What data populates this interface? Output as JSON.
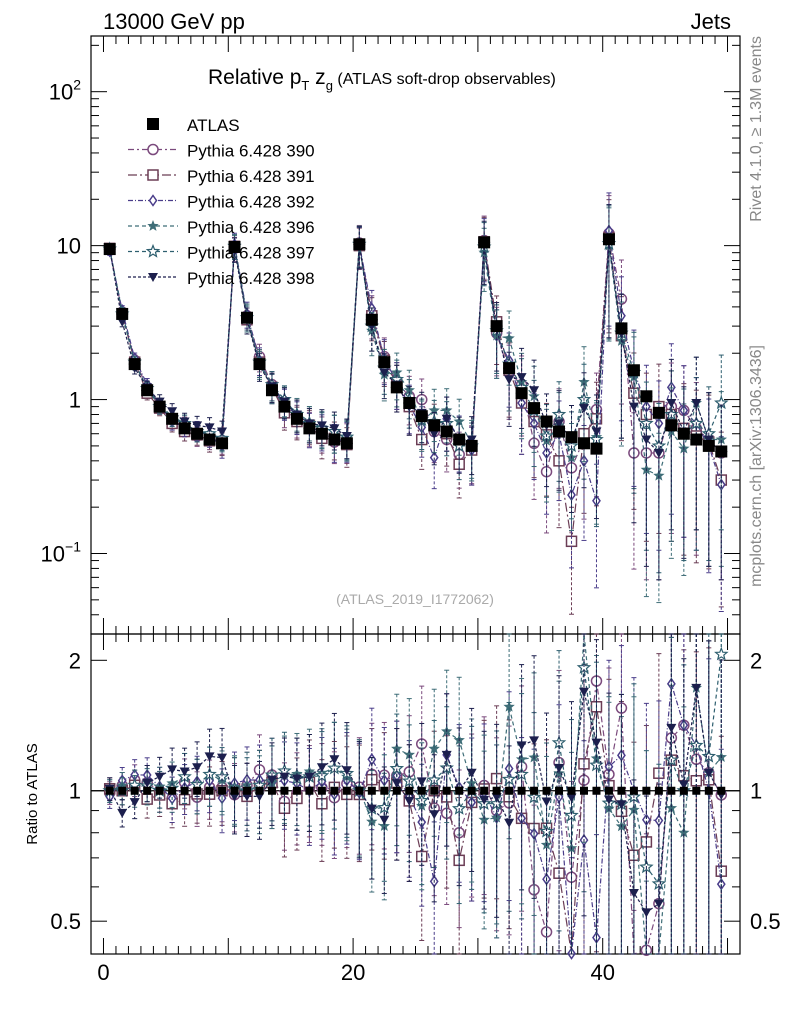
{
  "header": {
    "left": "13000 GeV pp",
    "right": "Jets"
  },
  "side_text": {
    "rivet": "Rivet 4.1.0, ≥ 1.3M events",
    "mcplots": "mcplots.cern.ch [arXiv:1306.3436]"
  },
  "chart_data": {
    "type": "scatter",
    "title": {
      "prefix": "Relative p",
      "sub1": "T",
      "mid": " z",
      "sub2": "g",
      "suffix": " (ATLAS soft-drop observables)"
    },
    "watermark": "(ATLAS_2019_I1772062)",
    "xlabel": "",
    "ylabel_main": "",
    "ylabel_ratio": "Ratio to ATLAS",
    "xlim": [
      -1,
      51
    ],
    "ylim_main": [
      0.03,
      230
    ],
    "ylim_ratio": [
      0.42,
      2.3
    ],
    "yscale_main": "log",
    "yscale_ratio": "log",
    "x_ticks": [
      0,
      20,
      40
    ],
    "x_tick_labels": [
      "0",
      "20",
      "40"
    ],
    "y_tick_labels_main": [
      {
        "base": "10",
        "exp": "2",
        "value": 100
      },
      {
        "base": "10",
        "exp": "",
        "value": 10
      },
      {
        "base": "1",
        "exp": "",
        "value": 1
      },
      {
        "base": "10",
        "exp": "−1",
        "value": 0.1
      }
    ],
    "y_tick_labels_ratio": [
      {
        "label": "2",
        "value": 2
      },
      {
        "label": "1",
        "value": 1
      },
      {
        "label": "0.5",
        "value": 0.5
      }
    ],
    "x": [
      0.5,
      1.5,
      2.5,
      3.5,
      4.5,
      5.5,
      6.5,
      7.5,
      8.5,
      9.5,
      10.5,
      11.5,
      12.5,
      13.5,
      14.5,
      15.5,
      16.5,
      17.5,
      18.5,
      19.5,
      20.5,
      21.5,
      22.5,
      23.5,
      24.5,
      25.5,
      26.5,
      27.5,
      28.5,
      29.5,
      30.5,
      31.5,
      32.5,
      33.5,
      34.5,
      35.5,
      36.5,
      37.5,
      38.5,
      39.5,
      40.5,
      41.5,
      42.5,
      43.5,
      44.5,
      45.5,
      46.5,
      47.5,
      48.5,
      49.5
    ],
    "data": {
      "name": "ATLAS",
      "values": [
        9.5,
        3.6,
        1.7,
        1.15,
        0.9,
        0.75,
        0.65,
        0.6,
        0.55,
        0.52,
        9.8,
        3.4,
        1.7,
        1.15,
        0.9,
        0.75,
        0.65,
        0.6,
        0.55,
        0.52,
        10.2,
        3.3,
        1.75,
        1.2,
        0.95,
        0.78,
        0.68,
        0.62,
        0.55,
        0.5,
        10.5,
        3.0,
        1.6,
        1.1,
        0.88,
        0.72,
        0.62,
        0.57,
        0.52,
        0.48,
        11.0,
        2.9,
        1.55,
        1.05,
        0.82,
        0.68,
        0.6,
        0.55,
        0.5,
        0.46
      ]
    },
    "series": [
      {
        "name": "Pythia 6.428 390",
        "color": "#7b4a7d",
        "marker": "circle-open",
        "dash": "6,3,2,3",
        "values": [
          9.4,
          3.7,
          1.8,
          1.2,
          0.9,
          0.72,
          0.68,
          0.58,
          0.56,
          0.53,
          9.6,
          3.5,
          1.9,
          1.25,
          0.85,
          0.74,
          0.66,
          0.61,
          0.53,
          0.54,
          10.4,
          3.6,
          1.9,
          1.3,
          1.05,
          1.0,
          0.62,
          0.55,
          0.44,
          0.48,
          10.8,
          2.7,
          1.5,
          1.25,
          0.52,
          0.34,
          0.72,
          0.36,
          0.55,
          0.86,
          12.0,
          4.5,
          0.45,
          0.45,
          0.45,
          0.9,
          0.85,
          0.65,
          0.55,
          0.45
        ]
      },
      {
        "name": "Pythia 6.428 391",
        "color": "#6b3d55",
        "marker": "square-open",
        "dash": "9,3,2,3",
        "values": [
          9.6,
          3.6,
          1.75,
          1.1,
          0.88,
          0.7,
          0.62,
          0.59,
          0.54,
          0.52,
          9.9,
          3.3,
          1.75,
          1.2,
          0.82,
          0.72,
          0.68,
          0.56,
          0.56,
          0.51,
          10.0,
          3.5,
          1.8,
          1.25,
          0.9,
          0.55,
          0.68,
          0.6,
          0.38,
          0.47,
          10.6,
          3.2,
          1.55,
          0.95,
          0.72,
          0.59,
          0.4,
          0.12,
          0.6,
          0.75,
          11.3,
          2.6,
          1.1,
          0.8,
          0.9,
          0.8,
          0.65,
          0.58,
          0.53,
          0.3
        ]
      },
      {
        "name": "Pythia 6.428 392",
        "color": "#4a3d8a",
        "marker": "diamond-open",
        "dash": "5,2,1,2",
        "values": [
          9.2,
          3.8,
          1.85,
          1.25,
          0.92,
          0.72,
          0.66,
          0.63,
          0.58,
          0.5,
          10.2,
          3.6,
          1.8,
          1.2,
          0.95,
          0.78,
          0.65,
          0.63,
          0.54,
          0.55,
          10.1,
          3.9,
          1.85,
          1.3,
          0.92,
          0.66,
          0.42,
          0.75,
          0.56,
          0.47,
          10.4,
          2.6,
          1.8,
          0.95,
          0.7,
          0.45,
          0.6,
          0.24,
          0.4,
          0.22,
          12.5,
          3.5,
          1.55,
          0.9,
          0.7,
          1.2,
          0.85,
          0.7,
          0.5,
          0.28
        ]
      },
      {
        "name": "Pythia 6.428 396",
        "color": "#3f6e78",
        "marker": "star",
        "dash": "4,3",
        "values": [
          9.5,
          3.7,
          1.7,
          1.2,
          0.92,
          0.78,
          0.7,
          0.62,
          0.6,
          0.55,
          10.0,
          3.5,
          1.7,
          1.2,
          0.98,
          0.82,
          0.72,
          0.66,
          0.62,
          0.56,
          10.3,
          2.8,
          1.45,
          1.5,
          1.15,
          0.72,
          0.85,
          0.85,
          0.72,
          0.52,
          9.0,
          2.6,
          2.5,
          1.3,
          1.05,
          0.54,
          0.68,
          0.42,
          1.3,
          0.57,
          10.0,
          2.4,
          1.4,
          0.35,
          0.32,
          0.62,
          0.48,
          0.95,
          0.55,
          0.55
        ]
      },
      {
        "name": "Pythia 6.428 397",
        "color": "#2e5f6f",
        "marker": "star-open",
        "dash": "4,3",
        "values": [
          9.5,
          3.6,
          1.75,
          1.18,
          0.9,
          0.76,
          0.7,
          0.62,
          0.6,
          0.56,
          9.9,
          3.4,
          1.75,
          1.25,
          1.0,
          0.8,
          0.7,
          0.65,
          0.62,
          0.57,
          10.2,
          3.0,
          1.6,
          1.35,
          1.0,
          0.74,
          0.72,
          0.7,
          0.5,
          0.5,
          9.8,
          2.8,
          1.7,
          1.2,
          0.85,
          0.58,
          0.8,
          0.5,
          1.0,
          0.55,
          10.3,
          2.7,
          1.5,
          0.7,
          0.5,
          0.8,
          0.6,
          0.7,
          0.6,
          0.95
        ]
      },
      {
        "name": "Pythia 6.428 398",
        "color": "#1c1f4d",
        "marker": "triangle-down",
        "dash": "3,2",
        "values": [
          9.6,
          3.2,
          1.6,
          1.2,
          0.97,
          0.84,
          0.72,
          0.68,
          0.66,
          0.62,
          9.5,
          3.3,
          1.65,
          1.22,
          0.97,
          0.8,
          0.7,
          0.68,
          0.65,
          0.58,
          10.2,
          3.0,
          1.5,
          1.25,
          0.9,
          0.82,
          0.6,
          0.75,
          0.55,
          0.55,
          10.0,
          2.9,
          1.35,
          1.4,
          1.15,
          0.68,
          0.7,
          0.55,
          0.88,
          0.62,
          10.5,
          2.7,
          0.9,
          0.55,
          0.45,
          0.95,
          0.62,
          0.95,
          0.55,
          0.45
        ]
      }
    ],
    "legend_position": "top-left"
  }
}
